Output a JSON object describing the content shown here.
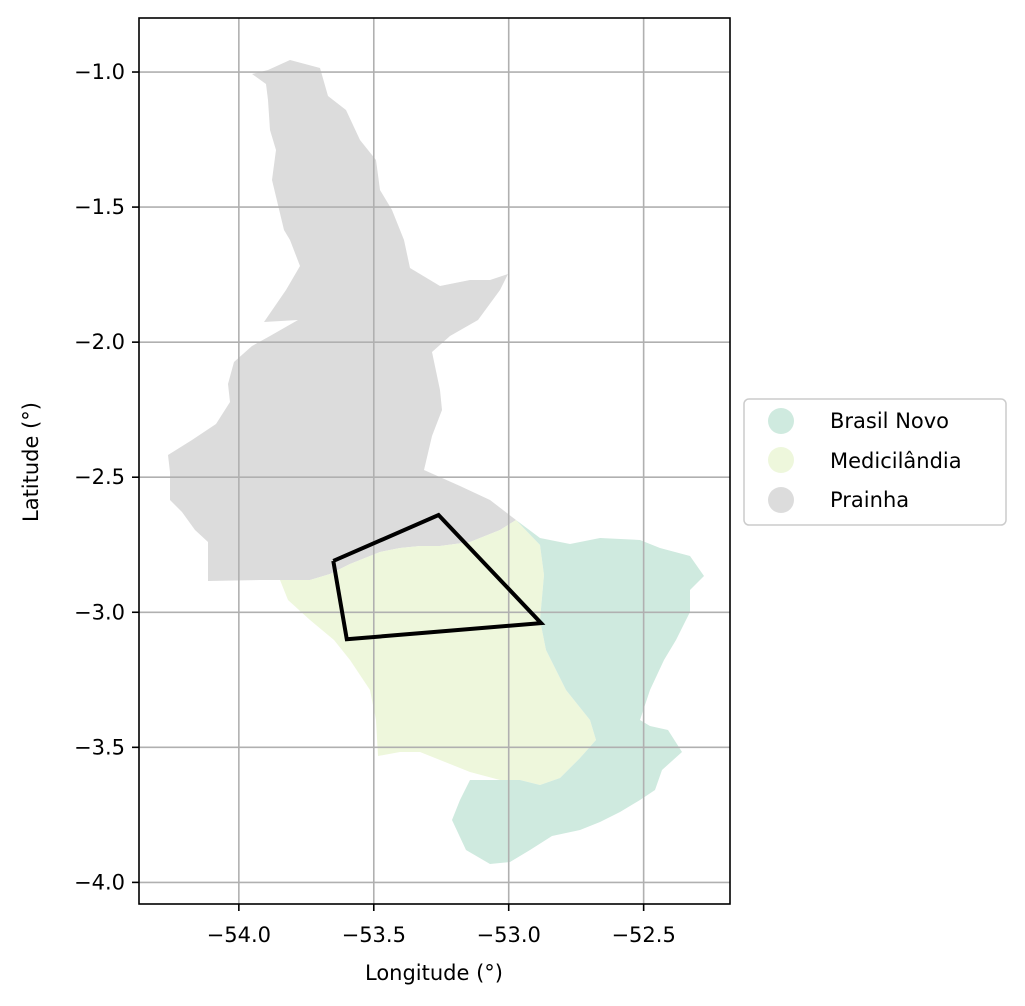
{
  "map": {
    "xlabel": "Longitude (°)",
    "ylabel": "Latitude (°)",
    "xlim": [
      -54.37,
      -52.18
    ],
    "ylim": [
      -4.08,
      -0.8
    ],
    "x_ticks": [
      -54.0,
      -53.5,
      -53.0,
      -52.5
    ],
    "x_tick_labels": [
      "−54.0",
      "−53.5",
      "−53.0",
      "−52.5"
    ],
    "y_ticks": [
      -1.0,
      -1.5,
      -2.0,
      -2.5,
      -3.0,
      -3.5,
      -4.0
    ],
    "y_tick_labels": [
      "−1.0",
      "−1.5",
      "−2.0",
      "−2.5",
      "−3.0",
      "−3.5",
      "−4.0"
    ],
    "grid": true,
    "legend_placement": "right-center",
    "regions": [
      {
        "name": "Brasil Novo",
        "color": "#cfeadf"
      },
      {
        "name": "Medicilândia",
        "color": "#eef7dc"
      },
      {
        "name": "Prainha",
        "color": "#dcdcdc"
      }
    ],
    "outline_polygon": {
      "color": "#000000",
      "lonlat": [
        [
          -53.65,
          -2.81
        ],
        [
          -53.26,
          -2.64
        ],
        [
          -52.88,
          -3.04
        ],
        [
          -53.6,
          -3.1
        ],
        [
          -53.65,
          -2.81
        ]
      ]
    }
  }
}
